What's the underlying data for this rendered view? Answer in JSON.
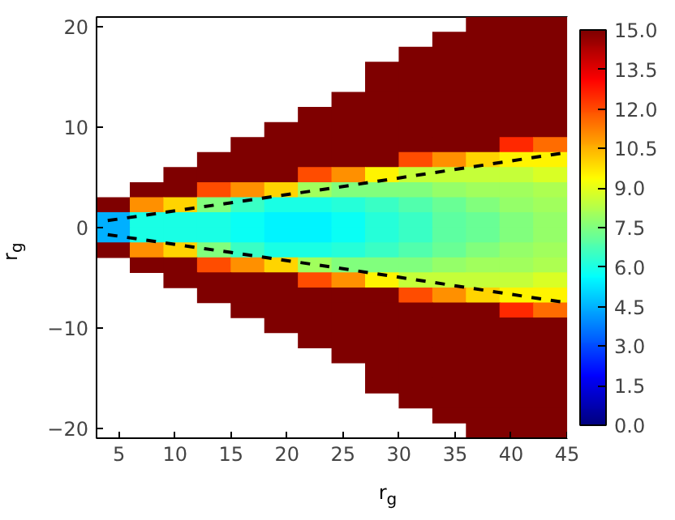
{
  "chart_data": {
    "type": "heatmap",
    "xlabel": "r$_{g}$",
    "ylabel": "r$_{g}$",
    "x": [
      4.5,
      7.5,
      10.5,
      13.5,
      16.5,
      19.5,
      22.5,
      25.5,
      28.5,
      31.5,
      34.5,
      37.5,
      40.5,
      43.5
    ],
    "y": [
      20.25,
      18.75,
      17.25,
      15.75,
      14.25,
      12.75,
      11.25,
      9.75,
      8.25,
      6.75,
      5.25,
      3.75,
      2.25,
      0.75,
      -0.75,
      -2.25,
      -3.75,
      -5.25,
      -6.75,
      -8.25,
      -9.75,
      -11.25,
      -12.75,
      -14.25,
      -15.75,
      -17.25,
      -18.75,
      -20.25
    ],
    "cells": [
      [
        null,
        null,
        null,
        null,
        null,
        null,
        null,
        null,
        null,
        null,
        null,
        15,
        15,
        15
      ],
      [
        null,
        null,
        null,
        null,
        null,
        null,
        null,
        null,
        null,
        null,
        15,
        15,
        15,
        15
      ],
      [
        null,
        null,
        null,
        null,
        null,
        null,
        null,
        null,
        null,
        15,
        15,
        15,
        15,
        15
      ],
      [
        null,
        null,
        null,
        null,
        null,
        null,
        null,
        null,
        15,
        15,
        15,
        15,
        15,
        15
      ],
      [
        null,
        null,
        null,
        null,
        null,
        null,
        null,
        null,
        15,
        15,
        15,
        15,
        15,
        15
      ],
      [
        null,
        null,
        null,
        null,
        null,
        null,
        null,
        15,
        15,
        15,
        15,
        15,
        15,
        15
      ],
      [
        null,
        null,
        null,
        null,
        null,
        null,
        15,
        15,
        15,
        15,
        15,
        15,
        15,
        15
      ],
      [
        null,
        null,
        null,
        null,
        null,
        15,
        15,
        15,
        15,
        15,
        15,
        15,
        15,
        15
      ],
      [
        null,
        null,
        null,
        null,
        15,
        15,
        15,
        15,
        15,
        15,
        15,
        15,
        12.5,
        11.5
      ],
      [
        null,
        null,
        null,
        15,
        15,
        15,
        15,
        15,
        15,
        12,
        11,
        10,
        9.5,
        9.5
      ],
      [
        null,
        null,
        15,
        15,
        15,
        15,
        12,
        11,
        9.5,
        8.5,
        8.5,
        8.5,
        8.5,
        8.8
      ],
      [
        null,
        15,
        15,
        12,
        11,
        10,
        8,
        7.5,
        7.5,
        7.5,
        7.8,
        8,
        8,
        8.2
      ],
      [
        15,
        11,
        10,
        7.5,
        6.5,
        6,
        6,
        6.2,
        6.5,
        6.8,
        7.2,
        7.5,
        7.8,
        8
      ],
      [
        4.5,
        6,
        6,
        6,
        5.8,
        5.5,
        5.5,
        5.8,
        6.2,
        6.5,
        7,
        7.2,
        7.5,
        7.8
      ],
      [
        4.5,
        6,
        6,
        6,
        5.8,
        5.5,
        5.5,
        5.8,
        6.2,
        6.5,
        7,
        7.2,
        7.5,
        7.8
      ],
      [
        15,
        11,
        10,
        7.5,
        6.5,
        6,
        6,
        6.2,
        6.5,
        6.8,
        7.2,
        7.5,
        7.8,
        8
      ],
      [
        null,
        15,
        15,
        12,
        11,
        10,
        8,
        7.5,
        7.5,
        7.5,
        7.8,
        8,
        8,
        8.2
      ],
      [
        null,
        null,
        15,
        15,
        15,
        15,
        12,
        11,
        9.5,
        8.5,
        8.5,
        8.5,
        8.5,
        8.8
      ],
      [
        null,
        null,
        null,
        15,
        15,
        15,
        15,
        15,
        15,
        12,
        11,
        10,
        9.5,
        9.5
      ],
      [
        null,
        null,
        null,
        null,
        15,
        15,
        15,
        15,
        15,
        15,
        15,
        15,
        12.5,
        11.5
      ],
      [
        null,
        null,
        null,
        null,
        null,
        15,
        15,
        15,
        15,
        15,
        15,
        15,
        15,
        15
      ],
      [
        null,
        null,
        null,
        null,
        null,
        null,
        15,
        15,
        15,
        15,
        15,
        15,
        15,
        15
      ],
      [
        null,
        null,
        null,
        null,
        null,
        null,
        null,
        15,
        15,
        15,
        15,
        15,
        15,
        15
      ],
      [
        null,
        null,
        null,
        null,
        null,
        null,
        null,
        null,
        15,
        15,
        15,
        15,
        15,
        15
      ],
      [
        null,
        null,
        null,
        null,
        null,
        null,
        null,
        null,
        15,
        15,
        15,
        15,
        15,
        15
      ],
      [
        null,
        null,
        null,
        null,
        null,
        null,
        null,
        null,
        null,
        15,
        15,
        15,
        15,
        15
      ],
      [
        null,
        null,
        null,
        null,
        null,
        null,
        null,
        null,
        null,
        null,
        15,
        15,
        15,
        15
      ],
      [
        null,
        null,
        null,
        null,
        null,
        null,
        null,
        null,
        null,
        null,
        null,
        15,
        15,
        15
      ]
    ],
    "series": [
      {
        "type": "line",
        "color": "#000000",
        "line_style": "dashed",
        "x": [
          4,
          25,
          45
        ],
        "values": [
          0.7,
          4.1,
          7.5
        ]
      },
      {
        "type": "line",
        "color": "#000000",
        "line_style": "dashed",
        "x": [
          4,
          25,
          45
        ],
        "values": [
          -0.7,
          -4.1,
          -7.5
        ]
      }
    ],
    "xlim": [
      3,
      45
    ],
    "ylim": [
      -21,
      21
    ],
    "xticks": [
      5,
      10,
      15,
      20,
      25,
      30,
      35,
      40,
      45
    ],
    "yticks": [
      -20,
      -10,
      0,
      10,
      20
    ],
    "clim": [
      0,
      15
    ],
    "cticks": [
      {
        "value": 0,
        "label": "0.0"
      },
      {
        "value": 1.5,
        "label": "1.5"
      },
      {
        "value": 3,
        "label": "3.0"
      },
      {
        "value": 4.5,
        "label": "4.5"
      },
      {
        "value": 6,
        "label": "6.0"
      },
      {
        "value": 7.5,
        "label": "7.5"
      },
      {
        "value": 9,
        "label": "9.0"
      },
      {
        "value": 10.5,
        "label": "10.5"
      },
      {
        "value": 12,
        "label": "12.0"
      },
      {
        "value": 13.5,
        "label": "13.5"
      },
      {
        "value": 15,
        "label": "15.0"
      }
    ]
  }
}
